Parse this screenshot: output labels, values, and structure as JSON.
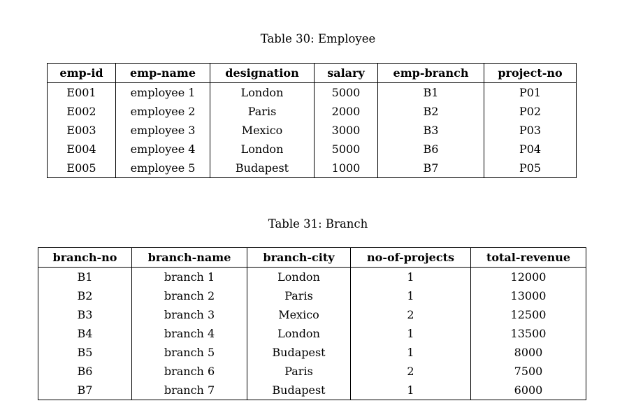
{
  "employee_table": {
    "caption": "Table 30: Employee",
    "headers": [
      "emp-id",
      "emp-name",
      "designation",
      "salary",
      "emp-branch",
      "project-no"
    ],
    "rows": [
      [
        "E001",
        "employee 1",
        "London",
        "5000",
        "B1",
        "P01"
      ],
      [
        "E002",
        "employee 2",
        "Paris",
        "2000",
        "B2",
        "P02"
      ],
      [
        "E003",
        "employee 3",
        "Mexico",
        "3000",
        "B3",
        "P03"
      ],
      [
        "E004",
        "employee 4",
        "London",
        "5000",
        "B6",
        "P04"
      ],
      [
        "E005",
        "employee 5",
        "Budapest",
        "1000",
        "B7",
        "P05"
      ]
    ]
  },
  "branch_table": {
    "caption": "Table 31: Branch",
    "headers": [
      "branch-no",
      "branch-name",
      "branch-city",
      "no-of-projects",
      "total-revenue"
    ],
    "rows": [
      [
        "B1",
        "branch 1",
        "London",
        "1",
        "12000"
      ],
      [
        "B2",
        "branch 2",
        "Paris",
        "1",
        "13000"
      ],
      [
        "B3",
        "branch 3",
        "Mexico",
        "2",
        "12500"
      ],
      [
        "B4",
        "branch 4",
        "London",
        "1",
        "13500"
      ],
      [
        "B5",
        "branch 5",
        "Budapest",
        "1",
        "8000"
      ],
      [
        "B6",
        "branch 6",
        "Paris",
        "2",
        "7500"
      ],
      [
        "B7",
        "branch 7",
        "Budapest",
        "1",
        "6000"
      ]
    ]
  }
}
